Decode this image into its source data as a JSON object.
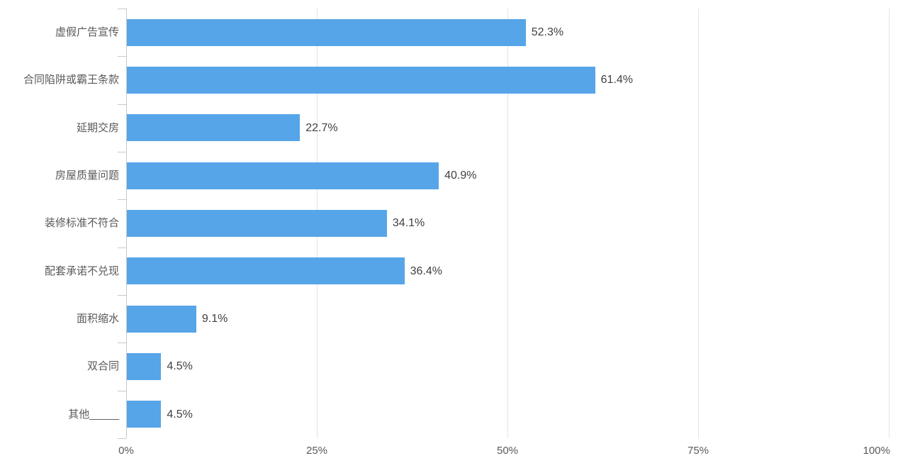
{
  "chart_data": {
    "type": "bar",
    "orientation": "horizontal",
    "categories": [
      "虚假广告宣传",
      "合同陷阱或霸王条款",
      "延期交房",
      "房屋质量问题",
      "装修标准不符合",
      "配套承诺不兑现",
      "面积缩水",
      "双合同",
      "其他_____"
    ],
    "values": [
      52.3,
      61.4,
      22.7,
      40.9,
      34.1,
      36.4,
      9.1,
      4.5,
      4.5
    ],
    "value_labels": [
      "52.3%",
      "61.4%",
      "22.7%",
      "40.9%",
      "34.1%",
      "36.4%",
      "9.1%",
      "4.5%",
      "4.5%"
    ],
    "x_tick_labels": [
      "0%",
      "25%",
      "50%",
      "75%",
      "100%"
    ],
    "xlim": [
      0,
      100
    ],
    "grid": "vertical-gridlines-on",
    "legend": "none",
    "bar_color": "#56A5E8"
  },
  "colors": {
    "background": "#FFFFFF",
    "bar": "#56A5E8",
    "grid_line": "#E4E4E4",
    "axis_line": "#C9C9C9",
    "tick": "#C9C9C9",
    "category_label": "#595959",
    "value_label": "#404040",
    "axis_label": "#595959"
  }
}
